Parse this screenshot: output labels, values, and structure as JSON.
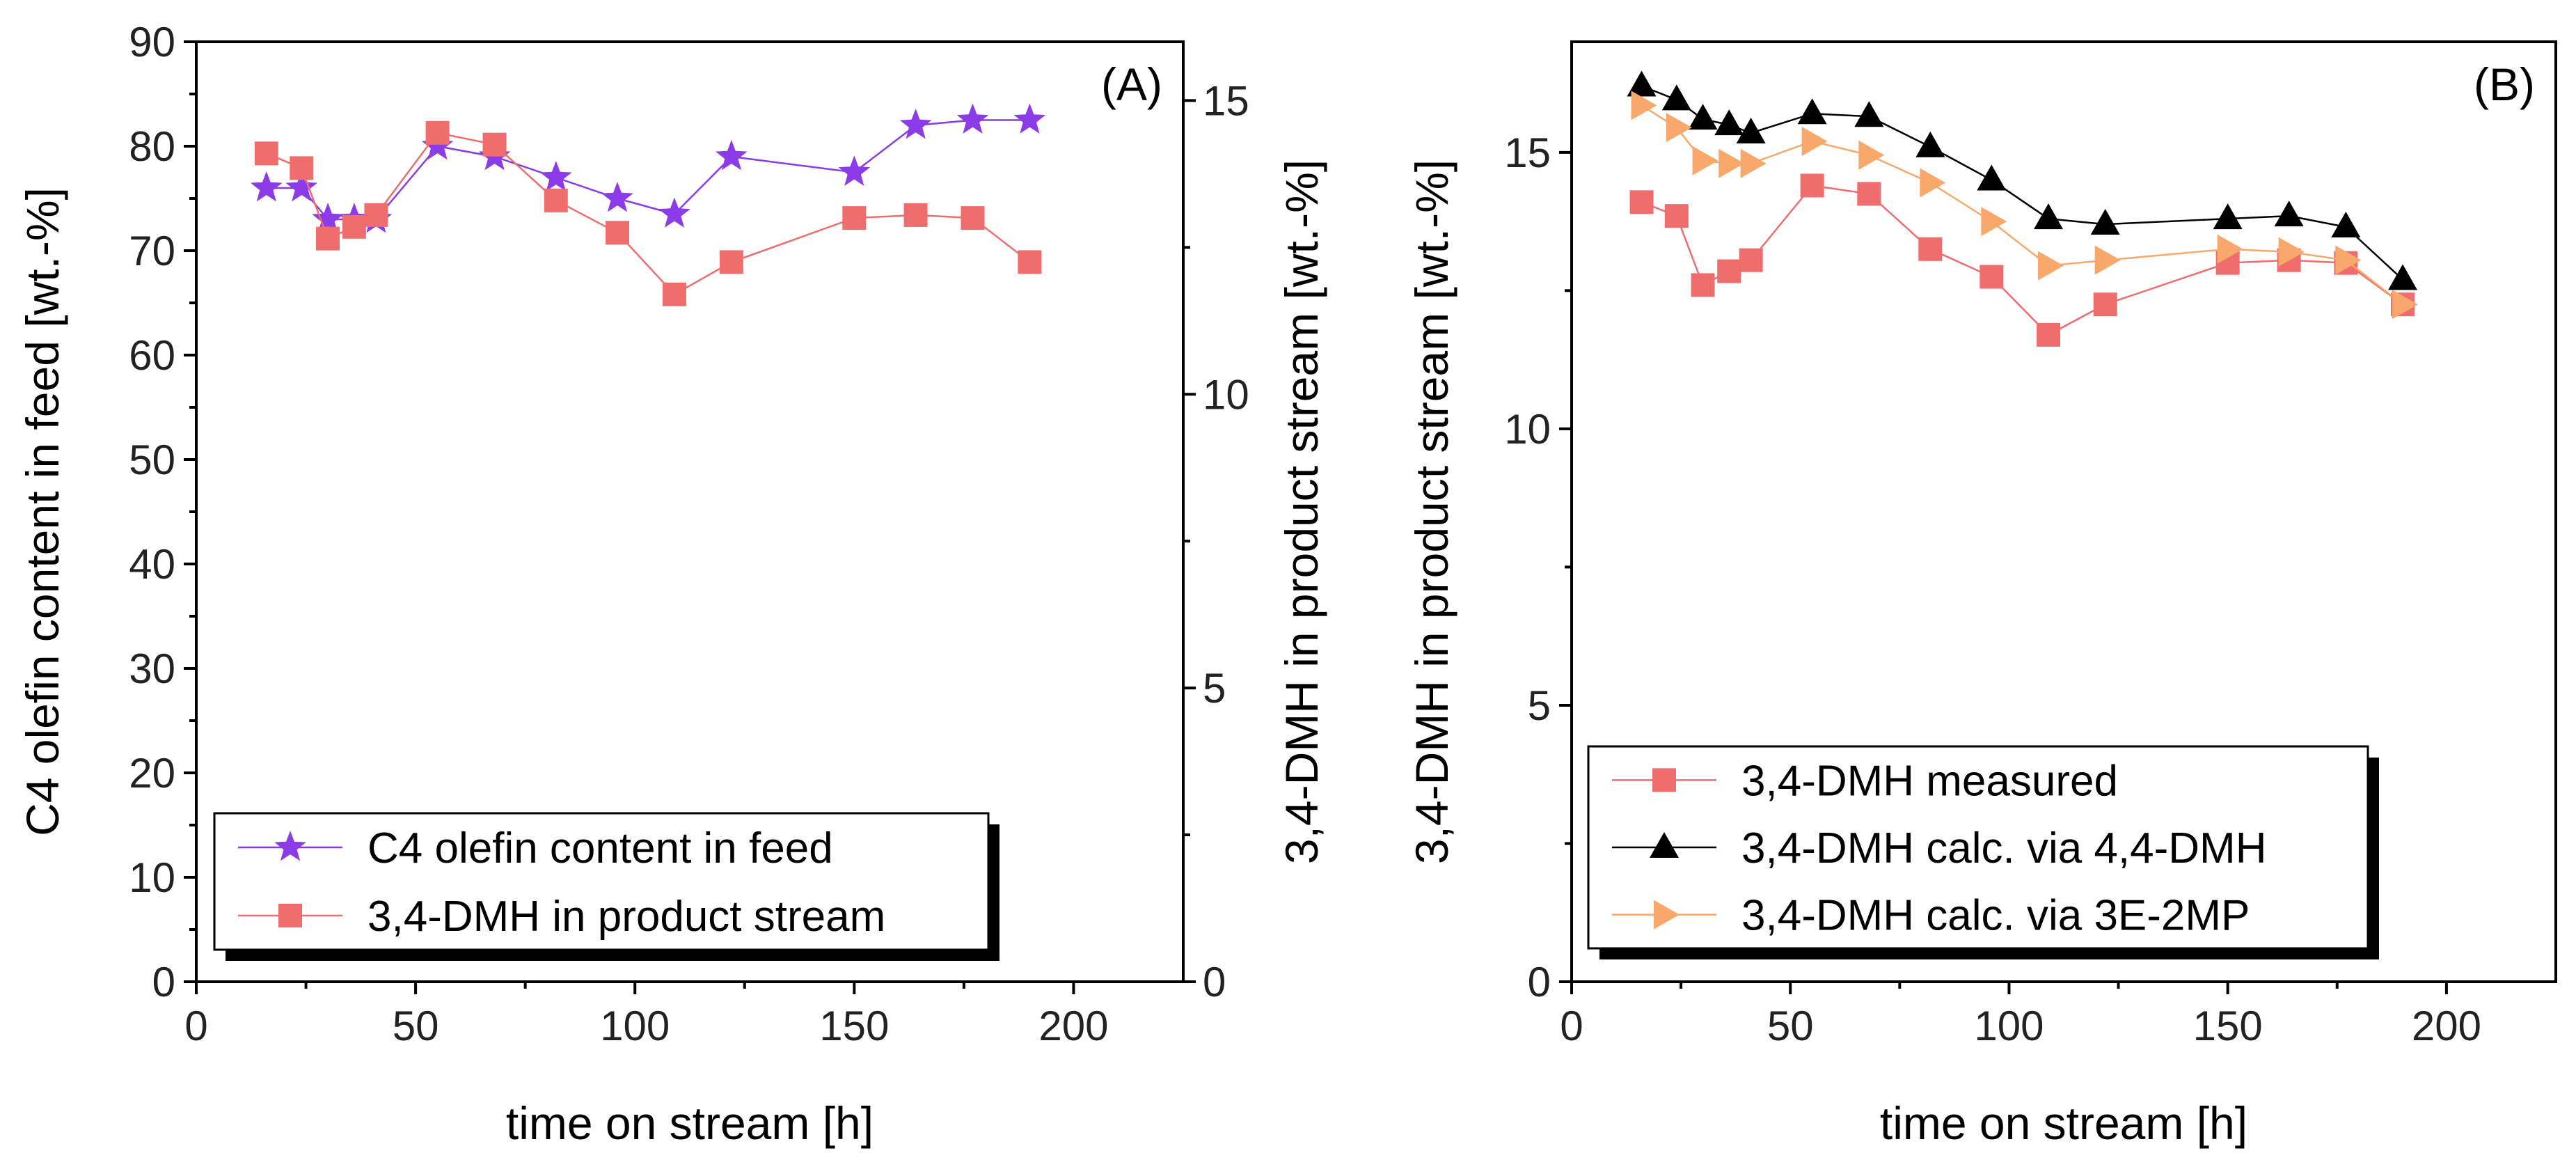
{
  "chart_data": [
    {
      "type": "line",
      "panel_label": "(A)",
      "xlabel": "time on stream [h]",
      "ylabel": "C4 olefin content in feed [wt.-%]",
      "ylabel_right": "3,4-DMH in product stream [wt.-%]",
      "xlim": [
        0,
        225
      ],
      "ylim": [
        0,
        90
      ],
      "ylim_right": [
        0,
        16
      ],
      "x_ticks": [
        0,
        50,
        100,
        150,
        200
      ],
      "y_ticks": [
        0,
        10,
        20,
        30,
        40,
        50,
        60,
        70,
        80,
        90
      ],
      "y_ticks_right": [
        0,
        5,
        10,
        15
      ],
      "legend_position": "bottom-left",
      "series": [
        {
          "name": "C4 olefin content in feed",
          "axis": "left",
          "marker": "star",
          "color": "#8B3BE8",
          "x": [
            16,
            24,
            30,
            36,
            41,
            55,
            68,
            82,
            96,
            109,
            122,
            150,
            164,
            177,
            190
          ],
          "y": [
            76,
            76,
            73,
            73,
            73,
            80,
            79,
            77,
            75,
            73.5,
            79,
            77.5,
            82,
            82.5,
            82.5
          ]
        },
        {
          "name": "3,4-DMH in product stream",
          "axis": "right",
          "marker": "square",
          "color": "#F06D6D",
          "x": [
            16,
            24,
            30,
            36,
            41,
            55,
            68,
            82,
            96,
            109,
            122,
            150,
            164,
            177,
            190
          ],
          "y": [
            14.1,
            13.85,
            12.65,
            12.85,
            13.05,
            14.45,
            14.25,
            13.3,
            12.75,
            11.7,
            12.25,
            13.0,
            13.05,
            13.0,
            12.25
          ]
        }
      ]
    },
    {
      "type": "line",
      "panel_label": "(B)",
      "xlabel": "time on stream [h]",
      "ylabel": "3,4-DMH in product stream [wt.-%]",
      "xlim": [
        0,
        225
      ],
      "ylim": [
        0,
        17
      ],
      "x_ticks": [
        0,
        50,
        100,
        150,
        200
      ],
      "y_ticks": [
        0,
        5,
        10,
        15
      ],
      "legend_position": "bottom-left",
      "series": [
        {
          "name": "3,4-DMH measured",
          "marker": "square",
          "color": "#F06D6D",
          "x": [
            16,
            24,
            30,
            36,
            41,
            55,
            68,
            82,
            96,
            109,
            122,
            150,
            164,
            177,
            190
          ],
          "y": [
            14.1,
            13.85,
            12.6,
            12.85,
            13.05,
            14.4,
            14.25,
            13.25,
            12.75,
            11.7,
            12.25,
            13.0,
            13.05,
            13.0,
            12.25
          ]
        },
        {
          "name": "3,4-DMH calc. via 4,4-DMH",
          "marker": "triangle-up",
          "color": "#000000",
          "x": [
            16,
            24,
            30,
            36,
            41,
            55,
            68,
            82,
            96,
            109,
            122,
            150,
            164,
            177,
            190
          ],
          "y": [
            16.2,
            15.95,
            15.6,
            15.5,
            15.35,
            15.7,
            15.65,
            15.1,
            14.5,
            13.8,
            13.7,
            13.8,
            13.85,
            13.65,
            12.7
          ]
        },
        {
          "name": "3,4-DMH calc. via 3E-2MP",
          "marker": "triangle-right",
          "color": "#F7A86A",
          "x": [
            16,
            24,
            30,
            36,
            41,
            55,
            68,
            82,
            96,
            109,
            122,
            150,
            164,
            177,
            190
          ],
          "y": [
            15.85,
            15.45,
            14.85,
            14.8,
            14.8,
            15.2,
            14.95,
            14.45,
            13.75,
            12.95,
            13.05,
            13.25,
            13.2,
            13.05,
            12.25
          ]
        }
      ]
    }
  ]
}
